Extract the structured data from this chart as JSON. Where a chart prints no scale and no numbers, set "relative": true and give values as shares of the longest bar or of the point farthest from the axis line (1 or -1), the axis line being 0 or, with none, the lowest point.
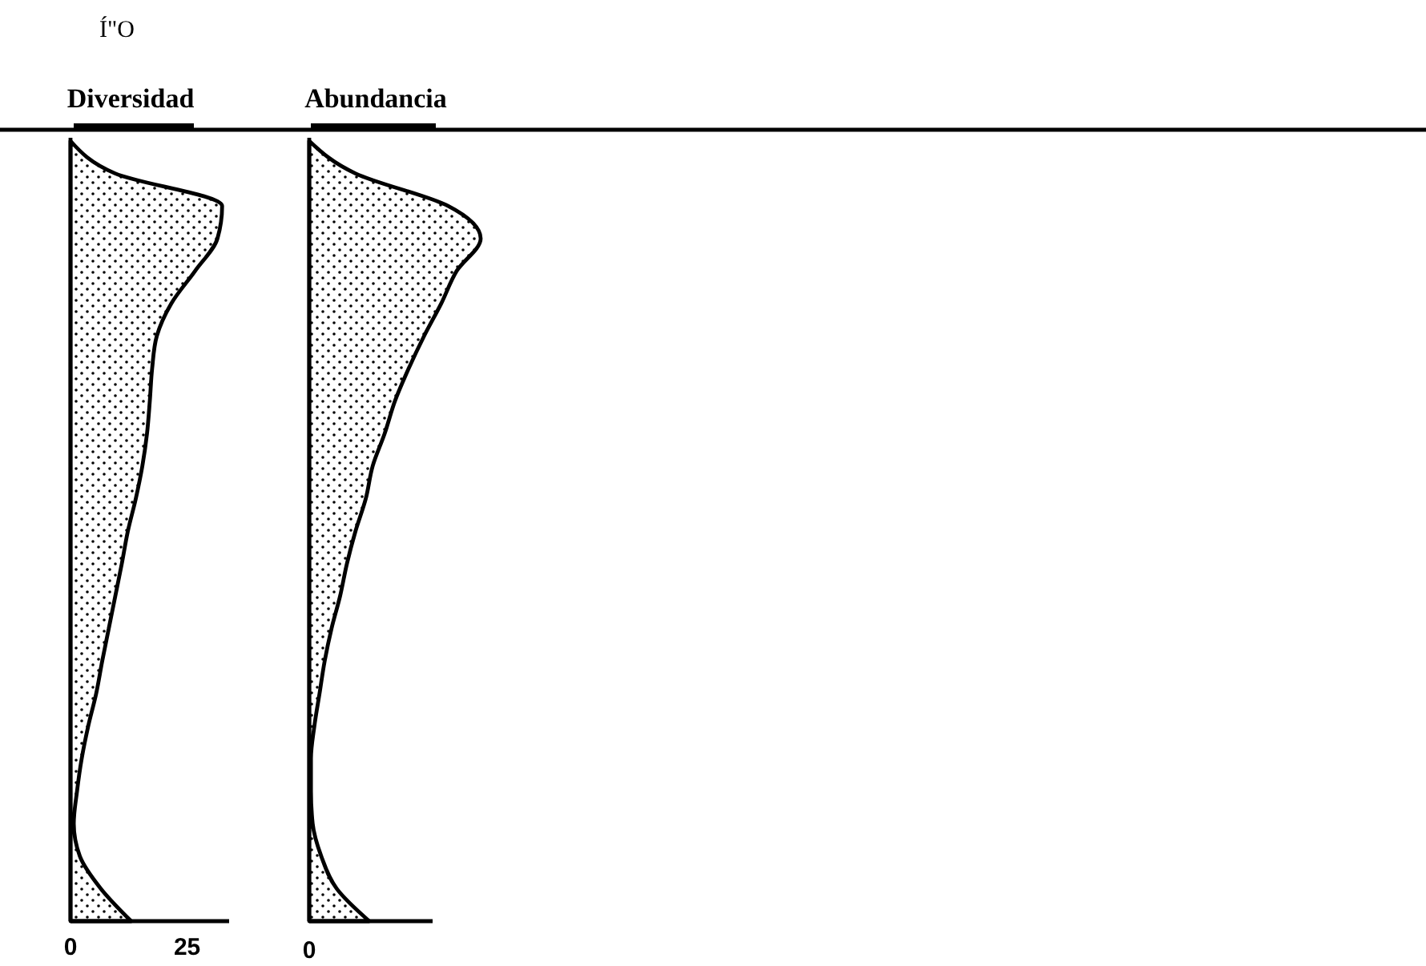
{
  "chart_data": [
    {
      "type": "area",
      "orientation": "horizontal",
      "title": "Diversidad",
      "annotations": [
        "Í\"O"
      ],
      "tick_labels": "x",
      "categories": [
        null,
        null,
        null,
        null,
        null,
        null,
        null,
        null,
        null,
        null,
        null,
        null,
        null,
        null,
        null,
        null,
        null,
        null,
        null,
        null,
        null,
        null,
        null,
        null,
        null
      ],
      "xlim": [
        0,
        34
      ],
      "xticks": [
        0,
        25
      ],
      "series": [
        {
          "color": "#000000",
          "values": [
            0,
            9.6,
            32.5,
            31.5,
            26.7,
            21.6,
            18.5,
            17.5,
            17,
            16.4,
            15.4,
            14,
            12.3,
            11,
            9.6,
            8.2,
            6.8,
            5.5,
            3.8,
            2.4,
            1.4,
            0.7,
            2,
            6.5,
            13
          ]
        }
      ]
    },
    {
      "type": "area",
      "orientation": "horizontal",
      "relative": true,
      "title": "Abundancia",
      "annotations": [
        "0"
      ],
      "categories": [
        null,
        null,
        null,
        null,
        null,
        null,
        null,
        null,
        null,
        null,
        null,
        null,
        null,
        null,
        null,
        null,
        null,
        null,
        null,
        null,
        null,
        null,
        null,
        null,
        null
      ],
      "series": [
        {
          "color": "#000000",
          "values": [
            0,
            0.27,
            0.81,
            1,
            0.86,
            0.77,
            0.67,
            0.58,
            0.5,
            0.44,
            0.37,
            0.33,
            0.27,
            0.22,
            0.18,
            0.13,
            0.09,
            0.06,
            0.03,
            0.01,
            0.01,
            0.02,
            0.07,
            0.16,
            0.35
          ]
        }
      ]
    }
  ]
}
